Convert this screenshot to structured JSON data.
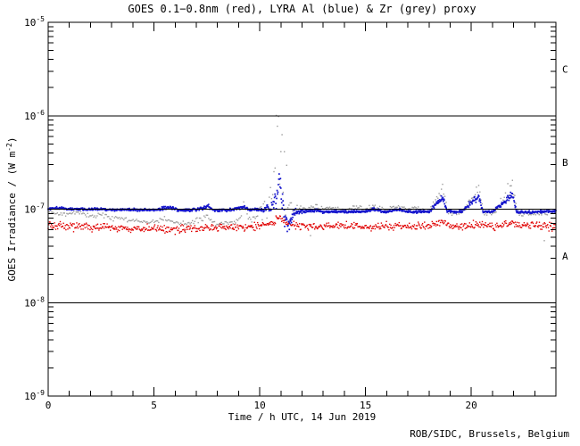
{
  "footer": "ROB/SIDC, Brussels, Belgium",
  "colors": {
    "background": "#ffffff",
    "axis": "#000000",
    "goes_red": "#e00000",
    "lyra_al_blue": "#1414cc",
    "lyra_zr_grey": "#9c9c9c"
  },
  "chart_data": {
    "type": "scatter",
    "title": "GOES 0.1−0.8nm (red), LYRA Al (blue) & Zr (grey) proxy",
    "xlabel": "Time / h UTC, 14 Jun 2019",
    "ylabel": {
      "prefix": "GOES Irradiance / (W m",
      "sup": "-2",
      "suffix": ")"
    },
    "x_range": [
      0,
      24
    ],
    "x_major_ticks": [
      0,
      5,
      10,
      15,
      20
    ],
    "x_minor_step_h": 1,
    "y_scale": "log",
    "y_range_exponents": [
      -9,
      -5
    ],
    "y_tick_exponents": [
      -5,
      -6,
      -7,
      -8,
      -9
    ],
    "y_tick_mantissa": "10",
    "boundary_line_exponents": [
      -6,
      -7,
      -8
    ],
    "grid": false,
    "flare_class_bands": [
      {
        "label": "C",
        "between_exponents": [
          -6,
          -5
        ]
      },
      {
        "label": "B",
        "between_exponents": [
          -7,
          -6
        ]
      },
      {
        "label": "A",
        "between_exponents": [
          -8,
          -7
        ]
      }
    ],
    "series": [
      {
        "name": "LYRA Zr proxy",
        "color_key": "lyra_zr_grey",
        "marker_px": 1.4,
        "sample_step_h": 0.055,
        "sigma_default": 0.012,
        "anchors": [
          [
            0,
            9.6e-08,
            0.012
          ],
          [
            0.5,
            9e-08,
            0.012
          ],
          [
            1,
            8.8e-08,
            0.012
          ],
          [
            1.4,
            9.3e-08,
            0.012
          ],
          [
            2,
            8.5e-08,
            0.012
          ],
          [
            2.5,
            8.7e-08,
            0.012
          ],
          [
            3,
            7.9e-08,
            0.012
          ],
          [
            3.3,
            8.3e-08,
            0.012
          ],
          [
            4,
            7.4e-08,
            0.012
          ],
          [
            4.5,
            7.2e-08,
            0.012
          ],
          [
            5,
            7.4e-08,
            0.012
          ],
          [
            5.5,
            7.9e-08,
            0.012
          ],
          [
            6,
            7.2e-08,
            0.012
          ],
          [
            6.5,
            7e-08,
            0.012
          ],
          [
            7,
            7.3e-08,
            0.014
          ],
          [
            7.5,
            8.4e-08,
            0.02
          ],
          [
            7.8,
            7.1e-08,
            0.014
          ],
          [
            8.5,
            7e-08,
            0.012
          ],
          [
            9,
            7.4e-08,
            0.014
          ],
          [
            9.25,
            1.28e-07,
            0.05
          ],
          [
            9.45,
            7.7e-08,
            0.02
          ],
          [
            9.8,
            7.9e-08,
            0.02
          ],
          [
            10.15,
            1.15e-07,
            0.06
          ],
          [
            10.35,
            9e-08,
            0.08
          ],
          [
            10.55,
            1.8e-07,
            0.12
          ],
          [
            10.7,
            2.8e-07,
            0.2
          ],
          [
            10.85,
            6.8e-07,
            0.22
          ],
          [
            10.95,
            3.5e-07,
            0.25
          ],
          [
            11.05,
            4.6e-07,
            0.25
          ],
          [
            11.2,
            1.8e-07,
            0.2
          ],
          [
            11.35,
            1.2e-07,
            0.1
          ],
          [
            11.55,
            1e-07,
            0.03
          ],
          [
            12,
            1.01e-07,
            0.012
          ],
          [
            12.7,
            1.06e-07,
            0.015
          ],
          [
            13,
            1e-07,
            0.012
          ],
          [
            13.5,
            1.03e-07,
            0.012
          ],
          [
            14,
            9.8e-08,
            0.012
          ],
          [
            14.5,
            1.04e-07,
            0.012
          ],
          [
            15,
            9.9e-08,
            0.012
          ],
          [
            15.4,
            1.07e-07,
            0.015
          ],
          [
            16,
            9.8e-08,
            0.012
          ],
          [
            16.5,
            1.1e-07,
            0.015
          ],
          [
            17,
            9.7e-08,
            0.012
          ],
          [
            17.3,
            1.05e-07,
            0.012
          ],
          [
            18,
            9.5e-08,
            0.012
          ],
          [
            18.65,
            1.65e-07,
            0.04
          ],
          [
            18.9,
            9.2e-08,
            0.015
          ],
          [
            19.5,
            9e-08,
            0.012
          ],
          [
            20.35,
            1.7e-07,
            0.04
          ],
          [
            20.6,
            8.9e-08,
            0.015
          ],
          [
            21,
            8.8e-08,
            0.012
          ],
          [
            21.95,
            1.78e-07,
            0.05
          ],
          [
            22.25,
            8.8e-08,
            0.015
          ],
          [
            23,
            8.8e-08,
            0.012
          ],
          [
            23.5,
            9e-08,
            0.012
          ],
          [
            24,
            9.3e-08,
            0.012
          ]
        ],
        "extra_points": [
          [
            12.4,
            5.2e-08
          ],
          [
            23.45,
            4.6e-08
          ]
        ]
      },
      {
        "name": "GOES 0.1-0.8nm",
        "color_key": "goes_red",
        "marker_px": 1.4,
        "sample_step_h": 0.03,
        "sigma_default": 0.02,
        "anchors": [
          [
            0,
            6.8e-08
          ],
          [
            1,
            6.6e-08
          ],
          [
            2,
            6.5e-08
          ],
          [
            3,
            6.3e-08
          ],
          [
            4,
            6.2e-08
          ],
          [
            5,
            6.2e-08
          ],
          [
            6,
            6.1e-08
          ],
          [
            7,
            6.2e-08
          ],
          [
            8,
            6.3e-08
          ],
          [
            9,
            6.4e-08
          ],
          [
            10,
            6.6e-08
          ],
          [
            10.7,
            7.3e-08
          ],
          [
            10.9,
            8.3e-08
          ],
          [
            11.1,
            7.5e-08
          ],
          [
            11.5,
            6.8e-08
          ],
          [
            12,
            6.6e-08
          ],
          [
            13,
            6.5e-08
          ],
          [
            14,
            6.6e-08
          ],
          [
            15,
            6.5e-08
          ],
          [
            16,
            6.6e-08
          ],
          [
            17,
            6.5e-08
          ],
          [
            18,
            6.6e-08
          ],
          [
            18.65,
            7.3e-08
          ],
          [
            19,
            6.6e-08
          ],
          [
            20,
            6.5e-08
          ],
          [
            20.4,
            7e-08
          ],
          [
            21,
            6.5e-08
          ],
          [
            21.95,
            7.2e-08
          ],
          [
            22.3,
            6.6e-08
          ],
          [
            23,
            6.6e-08
          ],
          [
            24,
            6.6e-08
          ]
        ],
        "extra_points": []
      },
      {
        "name": "LYRA Al proxy",
        "color_key": "lyra_al_blue",
        "marker_px": 1.7,
        "sample_step_h": 0.02,
        "sigma_default": 0.007,
        "anchors": [
          [
            0,
            1e-07,
            0.007
          ],
          [
            0.3,
            1.03e-07,
            0.007
          ],
          [
            1,
            1e-07,
            0.007
          ],
          [
            2,
            1e-07,
            0.007
          ],
          [
            3,
            9.9e-08,
            0.007
          ],
          [
            4,
            9.9e-08,
            0.007
          ],
          [
            5,
            9.8e-08,
            0.007
          ],
          [
            5.85,
            1.05e-07,
            0.01
          ],
          [
            6.1,
            9.8e-08,
            0.007
          ],
          [
            7,
            9.8e-08,
            0.007
          ],
          [
            7.55,
            1.07e-07,
            0.01
          ],
          [
            7.8,
            9.8e-08,
            0.007
          ],
          [
            8.5,
            9.8e-08,
            0.007
          ],
          [
            9.25,
            1.06e-07,
            0.01
          ],
          [
            9.5,
            9.9e-08,
            0.007
          ],
          [
            10.1,
            9.9e-08,
            0.008
          ],
          [
            10.5,
            1.03e-07,
            0.02
          ],
          [
            10.75,
            1.25e-07,
            0.05
          ],
          [
            10.9,
            2e-07,
            0.06
          ],
          [
            11.0,
            1.5e-07,
            0.07
          ],
          [
            11.15,
            9e-08,
            0.09
          ],
          [
            11.35,
            6.2e-08,
            0.06
          ],
          [
            11.55,
            8.8e-08,
            0.03
          ],
          [
            11.8,
            9.4e-08,
            0.01
          ],
          [
            12.7,
            9.7e-08,
            0.008
          ],
          [
            13,
            9.4e-08,
            0.007
          ],
          [
            14,
            9.4e-08,
            0.007
          ],
          [
            15,
            9.4e-08,
            0.007
          ],
          [
            15.4,
            9.9e-08,
            0.008
          ],
          [
            16,
            9.4e-08,
            0.007
          ],
          [
            16.5,
            9.9e-08,
            0.008
          ],
          [
            17,
            9.4e-08,
            0.007
          ],
          [
            18,
            9.4e-08,
            0.007
          ],
          [
            18.65,
            1.35e-07,
            0.02
          ],
          [
            18.85,
            9.5e-08,
            0.008
          ],
          [
            19.5,
            9.3e-08,
            0.007
          ],
          [
            20.35,
            1.36e-07,
            0.02
          ],
          [
            20.55,
            9.4e-08,
            0.008
          ],
          [
            21,
            9.3e-08,
            0.007
          ],
          [
            21.95,
            1.42e-07,
            0.02
          ],
          [
            22.15,
            9.3e-08,
            0.008
          ],
          [
            23,
            9.3e-08,
            0.007
          ],
          [
            24,
            9.6e-08,
            0.007
          ]
        ],
        "extra_points": []
      }
    ]
  }
}
